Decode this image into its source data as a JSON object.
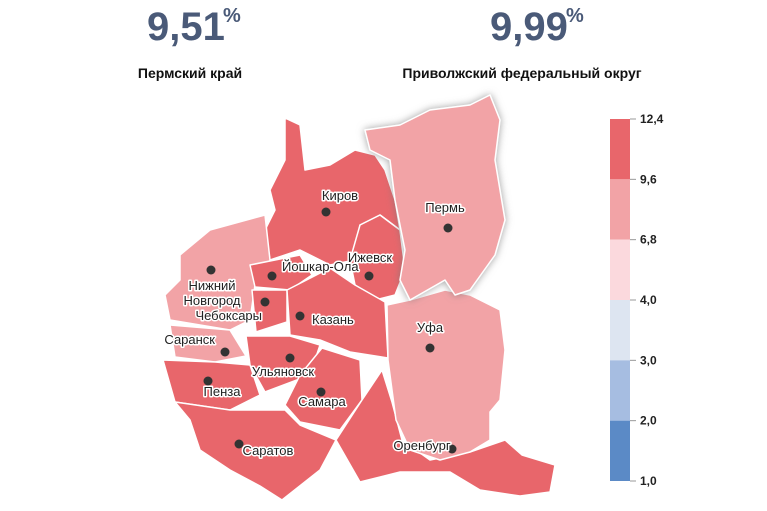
{
  "header": {
    "left": {
      "value": {
        "value": 9.51,
        "label": "9,51"
      },
      "unit": "%",
      "caption": "Пермский край"
    },
    "right": {
      "value": {
        "value": 9.99,
        "label": "9,99"
      },
      "unit": "%",
      "caption": "Приволжский федеральный округ"
    }
  },
  "cities": [
    "Киров",
    "Пермь",
    "Ижевск",
    "Йошкар-Ола",
    "Нижний Новгород",
    "Чебоксары",
    "Казань",
    "Саранск",
    "Уфа",
    "Ульяновск",
    "Пенза",
    "Самара",
    "Саратов",
    "Оренбург"
  ],
  "legend": {
    "ticks": [
      {
        "value": 12.4,
        "label": "12,4"
      },
      {
        "value": 9.6,
        "label": "9,6"
      },
      {
        "value": 6.8,
        "label": "6,8"
      },
      {
        "value": 4.0,
        "label": "4,0"
      },
      {
        "value": 3.0,
        "label": "3,0"
      },
      {
        "value": 2.0,
        "label": "2,0"
      },
      {
        "value": 1.0,
        "label": "1,0"
      }
    ],
    "colors": [
      "#e8666b",
      "#f2a3a6",
      "#fbd9dd",
      "#dde5f1",
      "#a6bde1",
      "#5b8ac6"
    ]
  }
}
